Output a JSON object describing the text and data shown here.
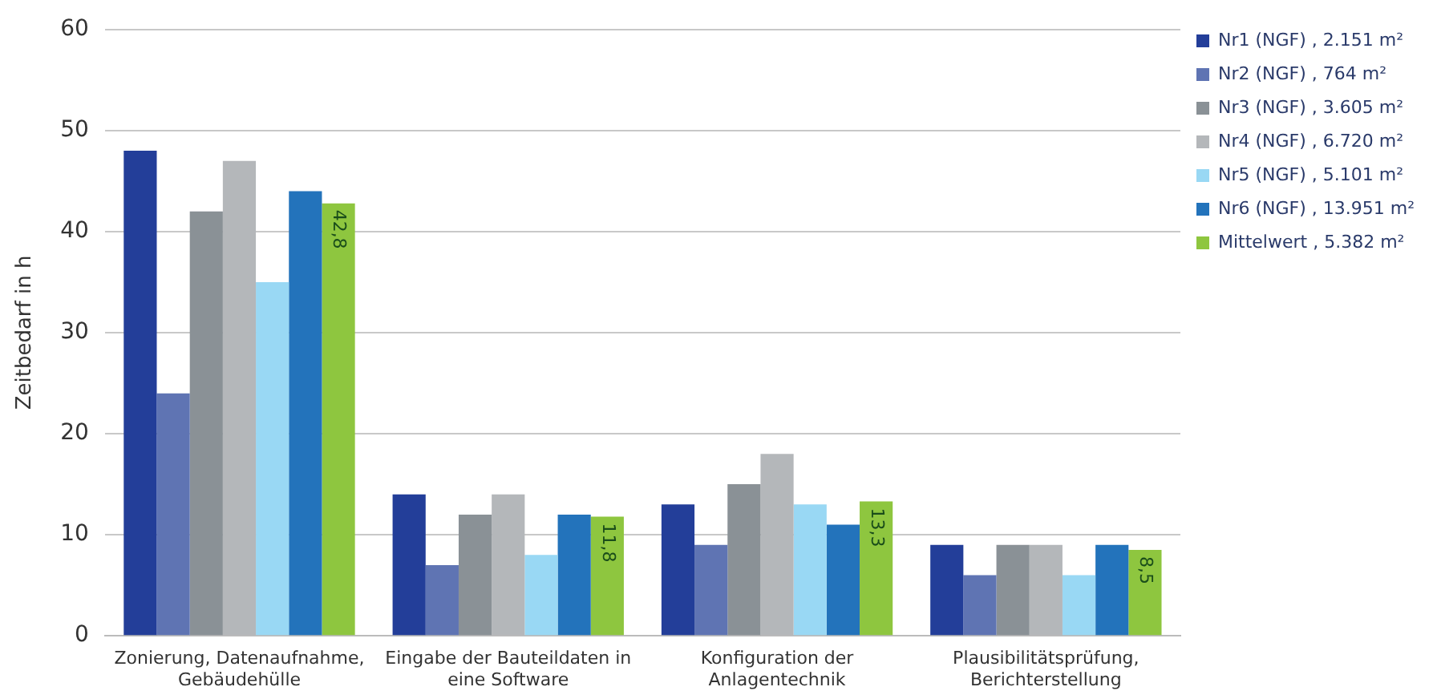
{
  "chart_data": {
    "type": "bar",
    "ylabel": "Zeitbedarf in h",
    "categories": [
      "Zonierung, Datenaufnahme, Gebäudehülle",
      "Eingabe der Bauteildaten in eine Software",
      "Konfiguration der Anlagentechnik",
      "Plausibilitätsprüfung, Berichterstellung"
    ],
    "series": [
      {
        "name": "Nr1 (NGF) , 2.151 m²",
        "color": "#233e99",
        "values": [
          48,
          14,
          13,
          9
        ]
      },
      {
        "name": "Nr2 (NGF) , 764 m²",
        "color": "#5f74b3",
        "values": [
          24,
          7,
          9,
          6
        ]
      },
      {
        "name": "Nr3 (NGF) , 3.605 m²",
        "color": "#8a9196",
        "values": [
          42,
          12,
          15,
          9
        ]
      },
      {
        "name": "Nr4 (NGF) , 6.720 m²",
        "color": "#b4b7ba",
        "values": [
          47,
          14,
          18,
          9
        ]
      },
      {
        "name": "Nr5 (NGF) , 5.101 m²",
        "color": "#99d8f4",
        "values": [
          35,
          8,
          13,
          6
        ]
      },
      {
        "name": "Nr6 (NGF) , 13.951 m²",
        "color": "#2373bb",
        "values": [
          44,
          12,
          11,
          9
        ]
      },
      {
        "name": "Mittelwert , 5.382 m²",
        "color": "#8ec63f",
        "values": [
          42.8,
          11.8,
          13.3,
          8.5
        ],
        "value_labels": [
          "42,8",
          "11,8",
          "13,3",
          "8,5"
        ]
      }
    ],
    "ylim": [
      0,
      60
    ],
    "yticks": [
      0,
      10,
      20,
      30,
      40,
      50,
      60
    ],
    "grid": "y",
    "legend": "right"
  }
}
